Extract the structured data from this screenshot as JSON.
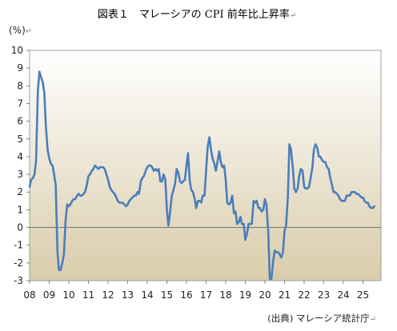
{
  "chart_data": {
    "type": "line",
    "title": "図表１　マレーシアの CPI 前年比上昇率",
    "title_mark": "↵",
    "ylabel": "(%)",
    "ylabel_mark": "↵",
    "source": "(出典) マレーシア統計庁",
    "source_mark": "↵",
    "xlabel": "",
    "ylim": [
      -3,
      10
    ],
    "yticks": [
      -3,
      -2,
      -1,
      0,
      1,
      2,
      3,
      4,
      5,
      6,
      7,
      8,
      9,
      10
    ],
    "xlim": [
      2008.0,
      2025.92
    ],
    "xticks": [
      {
        "label": "08",
        "x": 2008.0
      },
      {
        "label": "09",
        "x": 2009.0
      },
      {
        "label": "10",
        "x": 2010.0
      },
      {
        "label": "11",
        "x": 2011.0
      },
      {
        "label": "12",
        "x": 2012.0
      },
      {
        "label": "13",
        "x": 2013.0
      },
      {
        "label": "14",
        "x": 2014.0
      },
      {
        "label": "15",
        "x": 2015.0
      },
      {
        "label": "16",
        "x": 2016.0
      },
      {
        "label": "17",
        "x": 2017.0
      },
      {
        "label": "18",
        "x": 2018.0
      },
      {
        "label": "19",
        "x": 2019.0
      },
      {
        "label": "20",
        "x": 2020.0
      },
      {
        "label": "21",
        "x": 2021.0
      },
      {
        "label": "22",
        "x": 2022.0
      },
      {
        "label": "23",
        "x": 2023.0
      },
      {
        "label": "24",
        "x": 2024.0
      },
      {
        "label": "25",
        "x": 2025.0
      }
    ],
    "background_gradient": [
      "#ffffff",
      "#d9ccaa"
    ],
    "line_color": "#4a7ebb",
    "grid": false,
    "series": [
      {
        "x": [
          2008.0,
          2008.08,
          2008.17,
          2008.25,
          2008.33,
          2008.42,
          2008.5,
          2008.58,
          2008.67,
          2008.75,
          2008.83,
          2008.92,
          2009.0,
          2009.08,
          2009.17,
          2009.25,
          2009.33,
          2009.42,
          2009.5,
          2009.58,
          2009.67,
          2009.75,
          2009.83,
          2009.92,
          2010.0,
          2010.08,
          2010.17,
          2010.25,
          2010.33,
          2010.42,
          2010.5,
          2010.58,
          2010.67,
          2010.75,
          2010.83,
          2010.92,
          2011.0,
          2011.08,
          2011.17,
          2011.25,
          2011.33,
          2011.42,
          2011.5,
          2011.58,
          2011.67,
          2011.75,
          2011.83,
          2011.92,
          2012.0,
          2012.08,
          2012.17,
          2012.25,
          2012.33,
          2012.42,
          2012.5,
          2012.58,
          2012.67,
          2012.75,
          2012.83,
          2012.92,
          2013.0,
          2013.08,
          2013.17,
          2013.25,
          2013.33,
          2013.42,
          2013.5,
          2013.58,
          2013.67,
          2013.75,
          2013.83,
          2013.92,
          2014.0,
          2014.08,
          2014.17,
          2014.25,
          2014.33,
          2014.42,
          2014.5,
          2014.58,
          2014.67,
          2014.75,
          2014.83,
          2014.92,
          2015.0,
          2015.08,
          2015.17,
          2015.25,
          2015.33,
          2015.42,
          2015.5,
          2015.58,
          2015.67,
          2015.75,
          2015.83,
          2015.92,
          2016.0,
          2016.08,
          2016.17,
          2016.25,
          2016.33,
          2016.42,
          2016.5,
          2016.58,
          2016.67,
          2016.75,
          2016.83,
          2016.92,
          2017.0,
          2017.08,
          2017.17,
          2017.25,
          2017.33,
          2017.42,
          2017.5,
          2017.58,
          2017.67,
          2017.75,
          2017.83,
          2017.92,
          2018.0,
          2018.08,
          2018.17,
          2018.25,
          2018.33,
          2018.42,
          2018.5,
          2018.58,
          2018.67,
          2018.75,
          2018.83,
          2018.92,
          2019.0,
          2019.08,
          2019.17,
          2019.25,
          2019.33,
          2019.42,
          2019.5,
          2019.58,
          2019.67,
          2019.75,
          2019.83,
          2019.92,
          2020.0,
          2020.08,
          2020.17,
          2020.25,
          2020.33,
          2020.42,
          2020.5,
          2020.58,
          2020.67,
          2020.75,
          2020.83,
          2020.92,
          2021.0,
          2021.08,
          2021.17,
          2021.25,
          2021.33,
          2021.42,
          2021.5,
          2021.58,
          2021.67,
          2021.75,
          2021.83,
          2021.92,
          2022.0,
          2022.08,
          2022.17,
          2022.25,
          2022.33,
          2022.42,
          2022.5,
          2022.58,
          2022.67,
          2022.75,
          2022.83,
          2022.92,
          2023.0,
          2023.08,
          2023.17,
          2023.25,
          2023.33,
          2023.42,
          2023.5,
          2023.58,
          2023.67,
          2023.75,
          2023.83,
          2023.92,
          2024.0,
          2024.08,
          2024.17,
          2024.25,
          2024.33,
          2024.42,
          2024.5,
          2024.58,
          2024.67,
          2024.75,
          2024.83,
          2024.92,
          2025.0,
          2025.08,
          2025.17,
          2025.25,
          2025.33,
          2025.42,
          2025.5,
          2025.58
        ],
        "y": [
          2.3,
          2.7,
          2.8,
          3.0,
          3.8,
          7.7,
          8.8,
          8.5,
          8.2,
          7.6,
          5.7,
          4.4,
          3.9,
          3.6,
          3.5,
          3.0,
          2.4,
          -1.4,
          -2.4,
          -2.4,
          -2.0,
          -1.5,
          0.3,
          1.3,
          1.2,
          1.3,
          1.5,
          1.6,
          1.6,
          1.8,
          1.9,
          1.8,
          1.8,
          1.9,
          2.0,
          2.4,
          2.9,
          3.0,
          3.2,
          3.3,
          3.5,
          3.4,
          3.3,
          3.4,
          3.4,
          3.4,
          3.3,
          3.0,
          2.7,
          2.3,
          2.1,
          2.0,
          1.9,
          1.7,
          1.5,
          1.4,
          1.4,
          1.4,
          1.3,
          1.2,
          1.3,
          1.5,
          1.6,
          1.7,
          1.8,
          1.8,
          2.0,
          1.9,
          2.6,
          2.8,
          2.9,
          3.2,
          3.4,
          3.5,
          3.5,
          3.4,
          3.2,
          3.3,
          3.2,
          3.3,
          2.6,
          2.6,
          3.0,
          2.7,
          1.0,
          0.1,
          0.9,
          1.8,
          2.1,
          2.5,
          3.3,
          3.1,
          2.6,
          2.5,
          2.6,
          2.7,
          3.5,
          4.2,
          2.6,
          2.1,
          2.0,
          1.6,
          1.1,
          1.5,
          1.5,
          1.4,
          1.8,
          1.8,
          3.2,
          4.5,
          5.1,
          4.4,
          3.9,
          3.6,
          3.2,
          3.7,
          4.3,
          3.7,
          3.4,
          3.5,
          2.7,
          1.4,
          1.3,
          1.4,
          1.8,
          0.8,
          0.9,
          0.2,
          0.3,
          0.6,
          0.2,
          0.2,
          -0.7,
          -0.4,
          0.2,
          0.2,
          0.2,
          1.5,
          1.4,
          1.5,
          1.1,
          1.1,
          0.9,
          1.0,
          1.6,
          1.3,
          -0.2,
          -2.9,
          -2.9,
          -1.9,
          -1.3,
          -1.4,
          -1.4,
          -1.5,
          -1.7,
          -1.4,
          -0.2,
          0.1,
          1.7,
          4.7,
          4.4,
          3.4,
          2.2,
          2.0,
          2.2,
          2.9,
          3.3,
          3.2,
          2.3,
          2.2,
          2.2,
          2.3,
          2.8,
          3.4,
          4.4,
          4.7,
          4.5,
          4.0,
          4.0,
          3.8,
          3.7,
          3.7,
          3.4,
          3.3,
          2.8,
          2.4,
          2.0,
          2.0,
          1.9,
          1.8,
          1.6,
          1.5,
          1.5,
          1.5,
          1.8,
          1.8,
          1.8,
          2.0,
          2.0,
          2.0,
          1.9,
          1.9,
          1.8,
          1.7,
          1.7,
          1.5,
          1.4,
          1.4,
          1.2,
          1.1,
          1.1,
          1.2
        ]
      }
    ]
  }
}
